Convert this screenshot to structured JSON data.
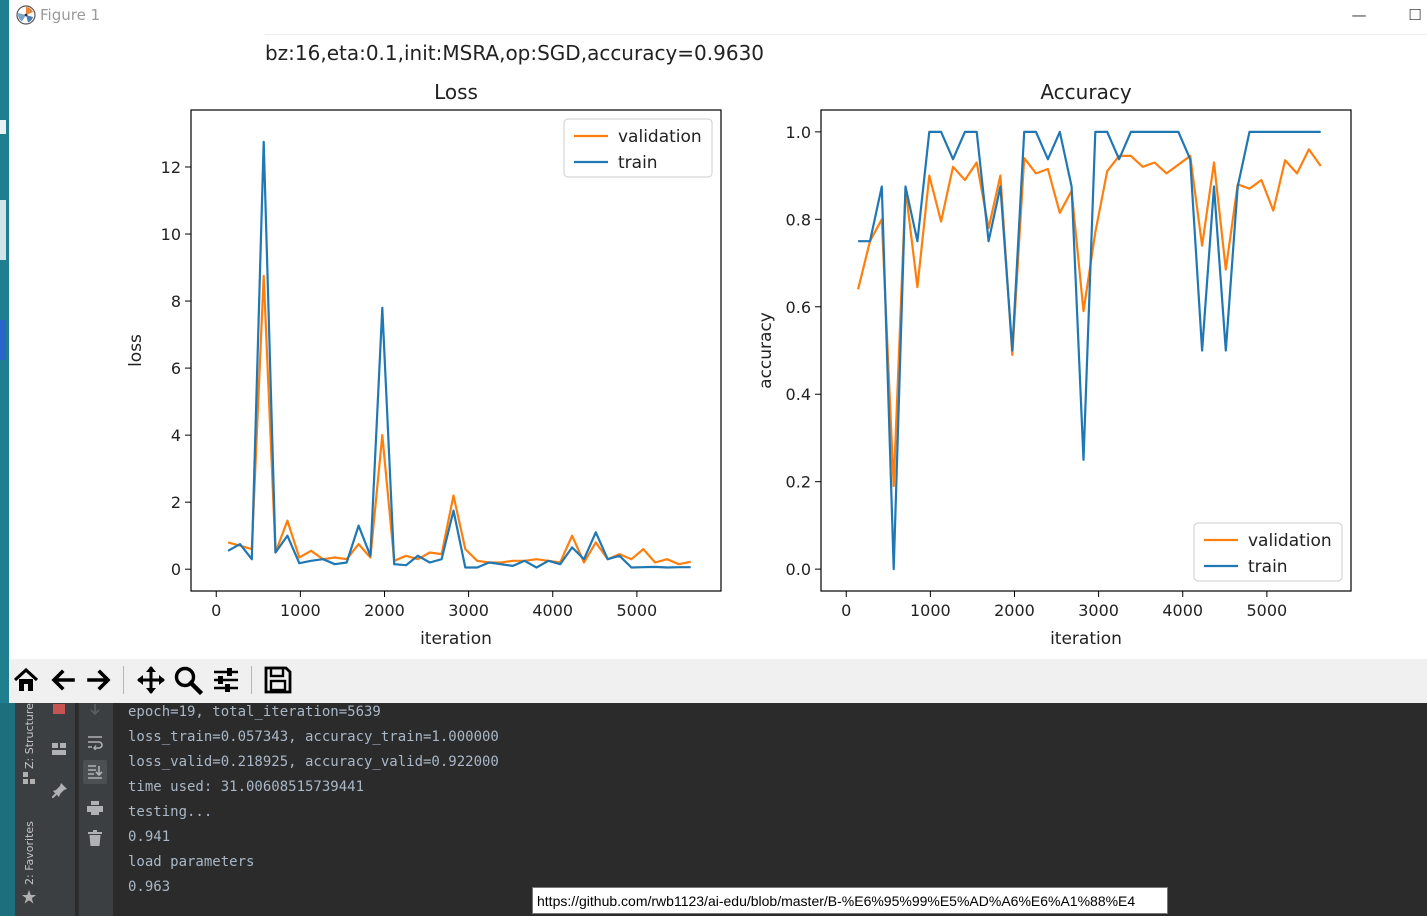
{
  "window": {
    "title": "Figure 1",
    "minimize_glyph": "—",
    "maximize_glyph": "☐"
  },
  "figure": {
    "suptitle": "bz:16,eta:0.1,init:MSRA,op:SGD,accuracy=0.9630"
  },
  "chart_data": [
    {
      "type": "line",
      "title": "Loss",
      "xlabel": "iteration",
      "ylabel": "loss",
      "xlim": [
        -300,
        6000
      ],
      "ylim": [
        -0.65,
        13.7
      ],
      "xticks": [
        0,
        1000,
        2000,
        3000,
        4000,
        5000
      ],
      "yticks": [
        0,
        2,
        4,
        6,
        8,
        10,
        12
      ],
      "grid": false,
      "legend": "top-right",
      "x": [
        141,
        282,
        423,
        564,
        705,
        846,
        987,
        1128,
        1269,
        1410,
        1551,
        1692,
        1833,
        1974,
        2115,
        2256,
        2397,
        2538,
        2679,
        2820,
        2961,
        3102,
        3243,
        3384,
        3525,
        3666,
        3807,
        3948,
        4089,
        4230,
        4371,
        4512,
        4653,
        4794,
        4935,
        5076,
        5217,
        5358,
        5499,
        5640
      ],
      "series": [
        {
          "name": "validation",
          "color": "#ff7f0e",
          "values": [
            0.8,
            0.7,
            0.6,
            8.75,
            0.5,
            1.45,
            0.35,
            0.55,
            0.3,
            0.35,
            0.3,
            0.75,
            0.35,
            4.0,
            0.25,
            0.4,
            0.3,
            0.5,
            0.45,
            2.2,
            0.6,
            0.25,
            0.2,
            0.2,
            0.25,
            0.25,
            0.3,
            0.25,
            0.2,
            1.0,
            0.2,
            0.8,
            0.3,
            0.45,
            0.3,
            0.6,
            0.2,
            0.3,
            0.15,
            0.22
          ]
        },
        {
          "name": "train",
          "color": "#1f77b4",
          "values": [
            0.55,
            0.75,
            0.3,
            12.75,
            0.5,
            1.0,
            0.18,
            0.25,
            0.3,
            0.15,
            0.2,
            1.3,
            0.4,
            7.8,
            0.15,
            0.12,
            0.4,
            0.2,
            0.3,
            1.75,
            0.05,
            0.05,
            0.2,
            0.15,
            0.1,
            0.25,
            0.05,
            0.25,
            0.15,
            0.65,
            0.3,
            1.1,
            0.3,
            0.4,
            0.05,
            0.06,
            0.07,
            0.05,
            0.06,
            0.06
          ]
        }
      ]
    },
    {
      "type": "line",
      "title": "Accuracy",
      "xlabel": "iteration",
      "ylabel": "accuracy",
      "xlim": [
        -300,
        6000
      ],
      "ylim": [
        -0.05,
        1.05
      ],
      "xticks": [
        0,
        1000,
        2000,
        3000,
        4000,
        5000
      ],
      "yticks": [
        0.0,
        0.2,
        0.4,
        0.6,
        0.8,
        1.0
      ],
      "grid": false,
      "legend": "bottom-right",
      "x": [
        141,
        282,
        423,
        564,
        705,
        846,
        987,
        1128,
        1269,
        1410,
        1551,
        1692,
        1833,
        1974,
        2115,
        2256,
        2397,
        2538,
        2679,
        2820,
        2961,
        3102,
        3243,
        3384,
        3525,
        3666,
        3807,
        3948,
        4089,
        4230,
        4371,
        4512,
        4653,
        4794,
        4935,
        5076,
        5217,
        5358,
        5499,
        5640
      ],
      "series": [
        {
          "name": "validation",
          "color": "#ff7f0e",
          "values": [
            0.64,
            0.75,
            0.8,
            0.19,
            0.87,
            0.645,
            0.9,
            0.795,
            0.92,
            0.89,
            0.93,
            0.78,
            0.9,
            0.49,
            0.94,
            0.905,
            0.915,
            0.815,
            0.865,
            0.59,
            0.77,
            0.91,
            0.945,
            0.945,
            0.92,
            0.93,
            0.905,
            0.925,
            0.945,
            0.74,
            0.93,
            0.685,
            0.88,
            0.87,
            0.89,
            0.82,
            0.935,
            0.905,
            0.96,
            0.922
          ]
        },
        {
          "name": "train",
          "color": "#1f77b4",
          "values": [
            0.75,
            0.75,
            0.875,
            0.0,
            0.875,
            0.75,
            1.0,
            1.0,
            0.9375,
            1.0,
            1.0,
            0.75,
            0.875,
            0.5,
            1.0,
            1.0,
            0.9375,
            1.0,
            0.875,
            0.25,
            1.0,
            1.0,
            0.9375,
            1.0,
            1.0,
            1.0,
            1.0,
            1.0,
            0.9375,
            0.5,
            0.875,
            0.5,
            0.875,
            1.0,
            1.0,
            1.0,
            1.0,
            1.0,
            1.0,
            1.0
          ]
        }
      ]
    }
  ],
  "toolbar": {
    "buttons": [
      {
        "name": "home-button",
        "icon": "home-icon"
      },
      {
        "name": "back-button",
        "icon": "arrow-left-icon"
      },
      {
        "name": "forward-button",
        "icon": "arrow-right-icon"
      },
      {
        "name": "pan-button",
        "icon": "move-icon"
      },
      {
        "name": "zoom-button",
        "icon": "magnifier-icon"
      },
      {
        "name": "configure-subplots-button",
        "icon": "sliders-icon"
      },
      {
        "name": "save-figure-button",
        "icon": "floppy-disk-icon"
      }
    ]
  },
  "ide": {
    "side_tabs": {
      "structure": "Z: Structure",
      "favorites": "2: Favorites"
    },
    "console_lines": [
      "epoch=19, total_iteration=5639",
      "loss_train=0.057343, accuracy_train=1.000000",
      "loss_valid=0.218925, accuracy_valid=0.922000",
      "time used: 31.00608515739441",
      "testing...",
      "0.941",
      "load parameters",
      "0.963"
    ],
    "tooltip": "https://github.com/rwb1123/ai-edu/blob/master/B-%E6%95%99%E5%AD%A6%E6%A1%88%E4"
  }
}
